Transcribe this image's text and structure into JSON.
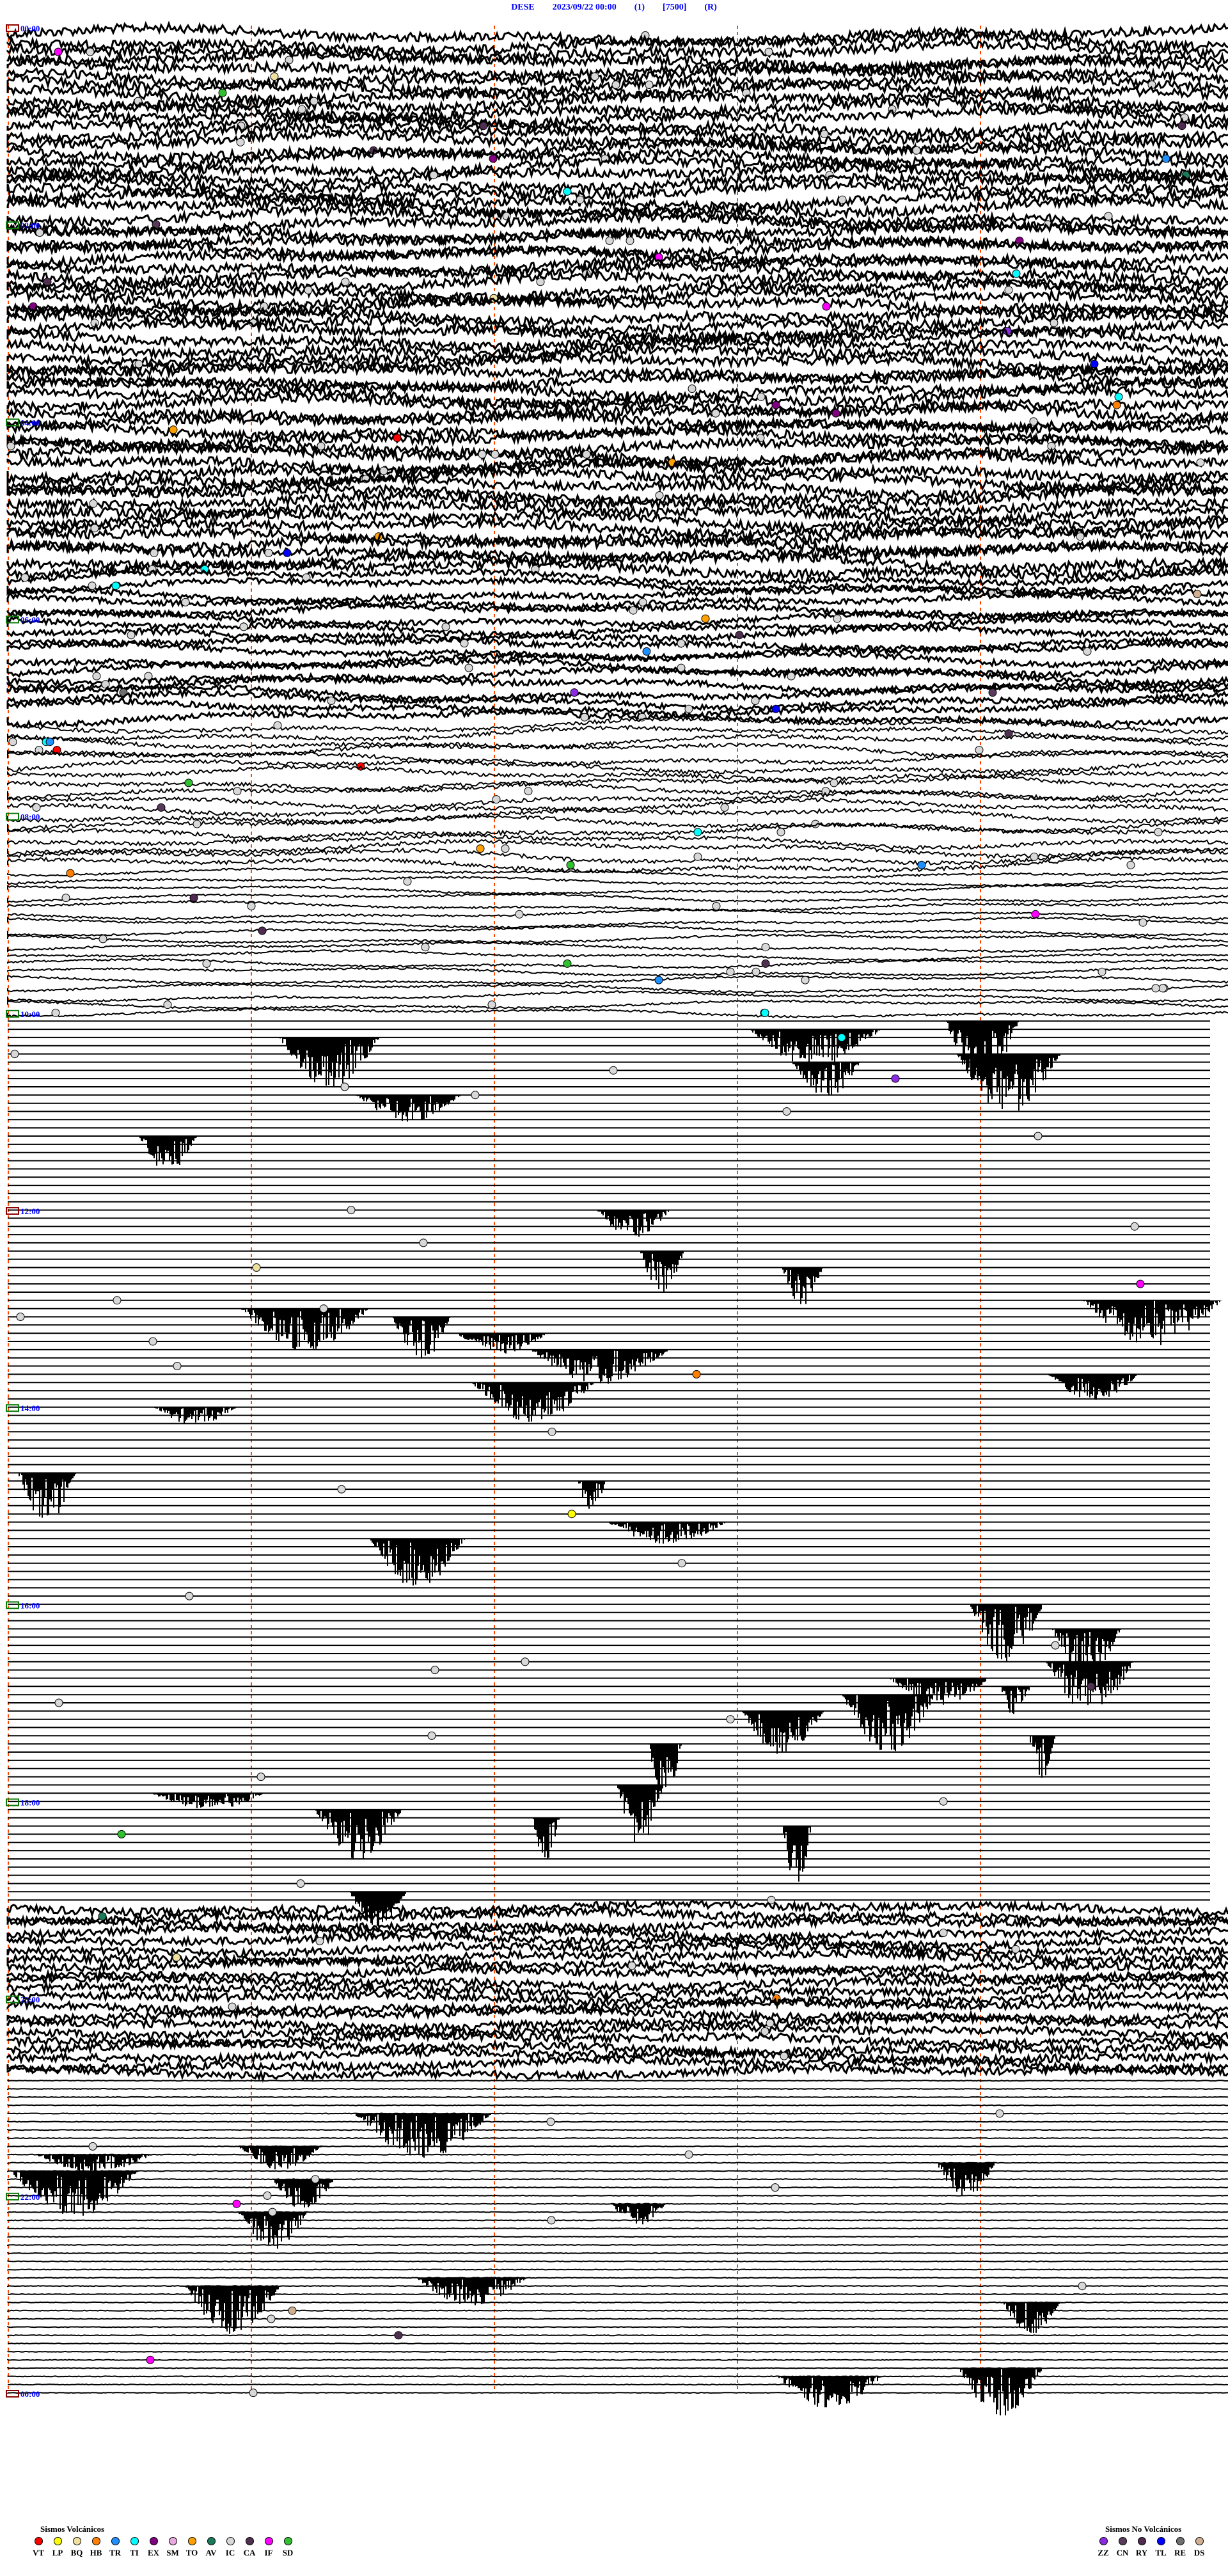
{
  "header": {
    "station": "DESE",
    "datetime": "2023/09/22 00:00",
    "channel": "(1)",
    "scale": "[7500]",
    "mode": "(R)"
  },
  "chart_data": {
    "type": "line",
    "kind": "helicorder",
    "title": "DESE 2023/09/22 00:00 (1) [7500] (R)",
    "minutes_per_line": 5,
    "time_labels": [
      "00:00",
      "02:00",
      "04:00",
      "06:00",
      "08:00",
      "10:00",
      "12:00",
      "14:00",
      "16:00",
      "18:00",
      "20:00",
      "22:00",
      "00:00"
    ],
    "grid": "vertical dashed markers",
    "colors": {
      "trace": "#000000",
      "time_label": "#0000ff",
      "marker": "#ff4500"
    }
  },
  "legend_volcanic": {
    "title": "Sismos Volcánicos",
    "items": [
      {
        "code": "VT",
        "color": "#ff0000"
      },
      {
        "code": "LP",
        "color": "#ffff00"
      },
      {
        "code": "BQ",
        "color": "#f0e0a0"
      },
      {
        "code": "HB",
        "color": "#ff8000"
      },
      {
        "code": "TR",
        "color": "#1e90ff"
      },
      {
        "code": "TI",
        "color": "#00ffff"
      },
      {
        "code": "EX",
        "color": "#800080"
      },
      {
        "code": "SM",
        "color": "#e8a8e0"
      },
      {
        "code": "TO",
        "color": "#ffa000"
      },
      {
        "code": "AV",
        "color": "#1a7a5a"
      },
      {
        "code": "IC",
        "color": "#d8d8d8"
      },
      {
        "code": "CA",
        "color": "#503050"
      },
      {
        "code": "IF",
        "color": "#ff00ff"
      },
      {
        "code": "SD",
        "color": "#30c030"
      }
    ]
  },
  "legend_nonvolcanic": {
    "title": "Sismos No Volcánicos",
    "items": [
      {
        "code": "ZZ",
        "color": "#8a2be2"
      },
      {
        "code": "CN",
        "color": "#5a3a5a"
      },
      {
        "code": "RY",
        "color": "#502a50"
      },
      {
        "code": "TL",
        "color": "#0000ff"
      },
      {
        "code": "RE",
        "color": "#707070"
      },
      {
        "code": "DS",
        "color": "#d0b090"
      }
    ]
  }
}
